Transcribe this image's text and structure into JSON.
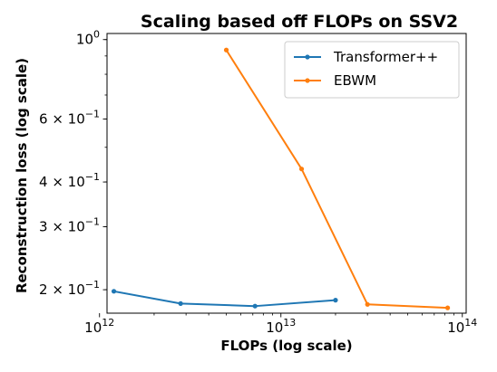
{
  "chart_data": {
    "type": "line",
    "title": "Scaling based off FLOPs on SSV2",
    "xlabel": "FLOPs (log scale)",
    "ylabel": "Reconstruction loss (log scale)",
    "xscale": "log",
    "yscale": "log",
    "xlim": [
      1100000000000.0,
      105000000000000.0
    ],
    "ylim": [
      0.172,
      1.04
    ],
    "grid": false,
    "legend_position": "top-right",
    "x_ticks": [
      {
        "value": 1000000000000.0,
        "base": "10",
        "exp": "12"
      },
      {
        "value": 10000000000000.0,
        "base": "10",
        "exp": "13"
      },
      {
        "value": 100000000000000.0,
        "base": "10",
        "exp": "14"
      }
    ],
    "y_ticks": [
      {
        "value": 1.0,
        "base": "10",
        "exp": "0",
        "prefix": ""
      },
      {
        "value": 0.6,
        "base": "10",
        "exp": "−1",
        "prefix": "6 × "
      },
      {
        "value": 0.4,
        "base": "10",
        "exp": "−1",
        "prefix": "4 × "
      },
      {
        "value": 0.3,
        "base": "10",
        "exp": "−1",
        "prefix": "3 × "
      },
      {
        "value": 0.2,
        "base": "10",
        "exp": "−1",
        "prefix": "2 × "
      }
    ],
    "series": [
      {
        "name": "Transformer++",
        "color": "#1f77b4",
        "x": [
          1200000000000.0,
          2800000000000.0,
          7200000000000.0,
          20000000000000.0
        ],
        "y": [
          0.198,
          0.183,
          0.18,
          0.187
        ]
      },
      {
        "name": "EBWM",
        "color": "#ff7f0e",
        "x": [
          5000000000000.0,
          13000000000000.0,
          30000000000000.0,
          83000000000000.0
        ],
        "y": [
          0.935,
          0.435,
          0.182,
          0.178
        ]
      }
    ]
  }
}
